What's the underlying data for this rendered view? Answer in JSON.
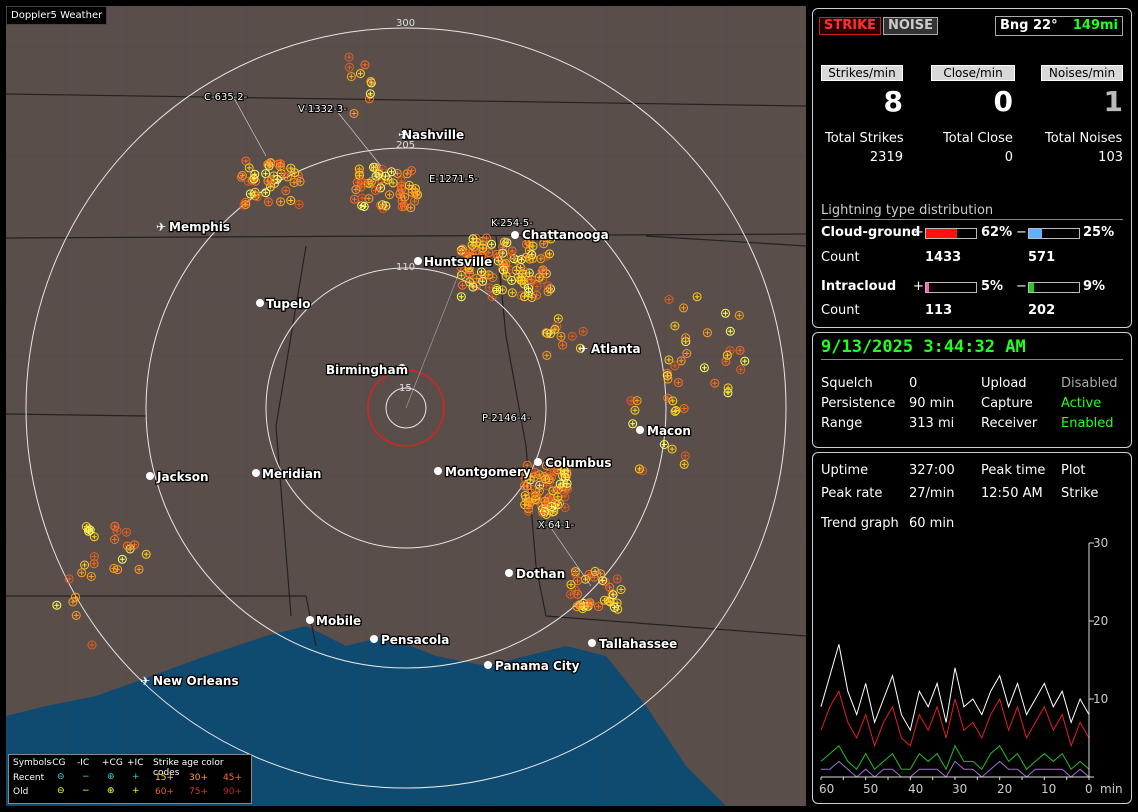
{
  "app_title": "Doppler5 Weather",
  "map": {
    "ring_labels": [
      "300",
      "205",
      "110",
      "15"
    ],
    "cities": [
      {
        "name": "Nashville",
        "airport": true
      },
      {
        "name": "Memphis",
        "airport": true
      },
      {
        "name": "Chattanooga",
        "airport": false
      },
      {
        "name": "Huntsville",
        "airport": false
      },
      {
        "name": "Tupelo",
        "airport": false
      },
      {
        "name": "Atlanta",
        "airport": true
      },
      {
        "name": "Birmingham",
        "airport": false
      },
      {
        "name": "Macon",
        "airport": false
      },
      {
        "name": "Jackson",
        "airport": false
      },
      {
        "name": "Meridian",
        "airport": false
      },
      {
        "name": "Montgomery",
        "airport": false
      },
      {
        "name": "Columbus",
        "airport": false
      },
      {
        "name": "Dothan",
        "airport": false
      },
      {
        "name": "Mobile",
        "airport": false
      },
      {
        "name": "Pensacola",
        "airport": false
      },
      {
        "name": "Tallahassee",
        "airport": false
      },
      {
        "name": "Panama City",
        "airport": false
      },
      {
        "name": "New Orleans",
        "airport": true
      }
    ],
    "storm_labels": [
      "C-635-2-",
      "V-1332-3-",
      "E-1271-5-",
      "K-254-5-",
      "P-2146-4-",
      "X-64-1-"
    ],
    "legend": {
      "symbols_label": "Symbols",
      "cols": [
        "-CG",
        "-IC",
        "+CG",
        "+IC"
      ],
      "rows": [
        "Recent",
        "Old"
      ],
      "age_title": "Strike age color codes",
      "recent_ages": [
        "15+",
        "30+",
        "45+"
      ],
      "old_ages": [
        "60+",
        "75+",
        "90+"
      ]
    }
  },
  "top": {
    "strike_btn": "STRIKE",
    "noise_btn": "NOISE",
    "bearing": "Bng 22°",
    "range": "149mi",
    "rate_labels": [
      "Strikes/min",
      "Close/min",
      "Noises/min"
    ],
    "rates": [
      "8",
      "0",
      "1"
    ],
    "total_labels": [
      "Total Strikes",
      "Total Close",
      "Total Noises"
    ],
    "totals": [
      "2319",
      "0",
      "103"
    ],
    "dist_title": "Lightning type distribution",
    "cg_label": "Cloud-ground",
    "ic_label": "Intracloud",
    "count_label": "Count",
    "cg_pos_pct": "62%",
    "cg_neg_pct": "25%",
    "cg_pos_count": "1433",
    "cg_neg_count": "571",
    "ic_pos_pct": "5%",
    "ic_neg_pct": "9%",
    "ic_pos_count": "113",
    "ic_neg_count": "202",
    "cg_pos_frac": 0.62,
    "cg_neg_frac": 0.25,
    "ic_pos_frac": 0.05,
    "ic_neg_frac": 0.09
  },
  "status": {
    "datetime": "9/13/2025 3:44:32 AM",
    "squelch_label": "Squelch",
    "squelch": "0",
    "persistence_label": "Persistence",
    "persistence": "90 min",
    "range_label": "Range",
    "range": "313 mi",
    "upload_label": "Upload",
    "upload": "Disabled",
    "capture_label": "Capture",
    "capture": "Active",
    "receiver_label": "Receiver",
    "receiver": "Enabled"
  },
  "trend": {
    "uptime_label": "Uptime",
    "uptime": "327:00",
    "peak_time_label": "Peak time",
    "plot_label": "Plot",
    "peak_rate_label": "Peak rate",
    "peak_rate": "27/min",
    "peak_time": "12:50 AM",
    "plot": "Strike",
    "graph_label": "Trend graph",
    "graph_window": "60 min",
    "y_ticks": [
      "30",
      "20",
      "10"
    ],
    "x_ticks": [
      "60",
      "50",
      "40",
      "30",
      "20",
      "10",
      "0"
    ],
    "x_unit": "min"
  },
  "chart_data": {
    "type": "line",
    "x": [
      60,
      58,
      56,
      54,
      52,
      50,
      48,
      46,
      44,
      42,
      40,
      38,
      36,
      34,
      32,
      30,
      28,
      26,
      24,
      22,
      20,
      18,
      16,
      14,
      12,
      10,
      8,
      6,
      4,
      2,
      0
    ],
    "ylim": [
      0,
      30
    ],
    "series": [
      {
        "color": "#ffffff",
        "values": [
          9,
          13,
          17,
          11,
          8,
          12,
          7,
          10,
          13,
          8,
          6,
          11,
          9,
          12,
          7,
          14,
          9,
          10,
          8,
          11,
          13,
          9,
          12,
          8,
          10,
          12,
          9,
          11,
          7,
          10,
          8
        ]
      },
      {
        "color": "#e02020",
        "values": [
          6,
          9,
          11,
          7,
          5,
          8,
          4,
          7,
          9,
          5,
          4,
          8,
          6,
          9,
          5,
          10,
          6,
          7,
          5,
          8,
          10,
          6,
          9,
          5,
          7,
          9,
          6,
          8,
          4,
          7,
          5
        ]
      },
      {
        "color": "#20c020",
        "values": [
          2,
          3,
          4,
          2,
          1,
          3,
          1,
          2,
          3,
          1,
          1,
          3,
          2,
          3,
          1,
          4,
          2,
          2,
          1,
          3,
          4,
          2,
          3,
          1,
          2,
          3,
          2,
          3,
          1,
          2,
          1
        ]
      },
      {
        "color": "#a070d0",
        "values": [
          1,
          1,
          2,
          1,
          0,
          1,
          0,
          1,
          1,
          0,
          0,
          1,
          1,
          1,
          0,
          2,
          1,
          1,
          0,
          1,
          2,
          1,
          1,
          0,
          1,
          1,
          1,
          1,
          0,
          1,
          0
        ]
      }
    ]
  }
}
